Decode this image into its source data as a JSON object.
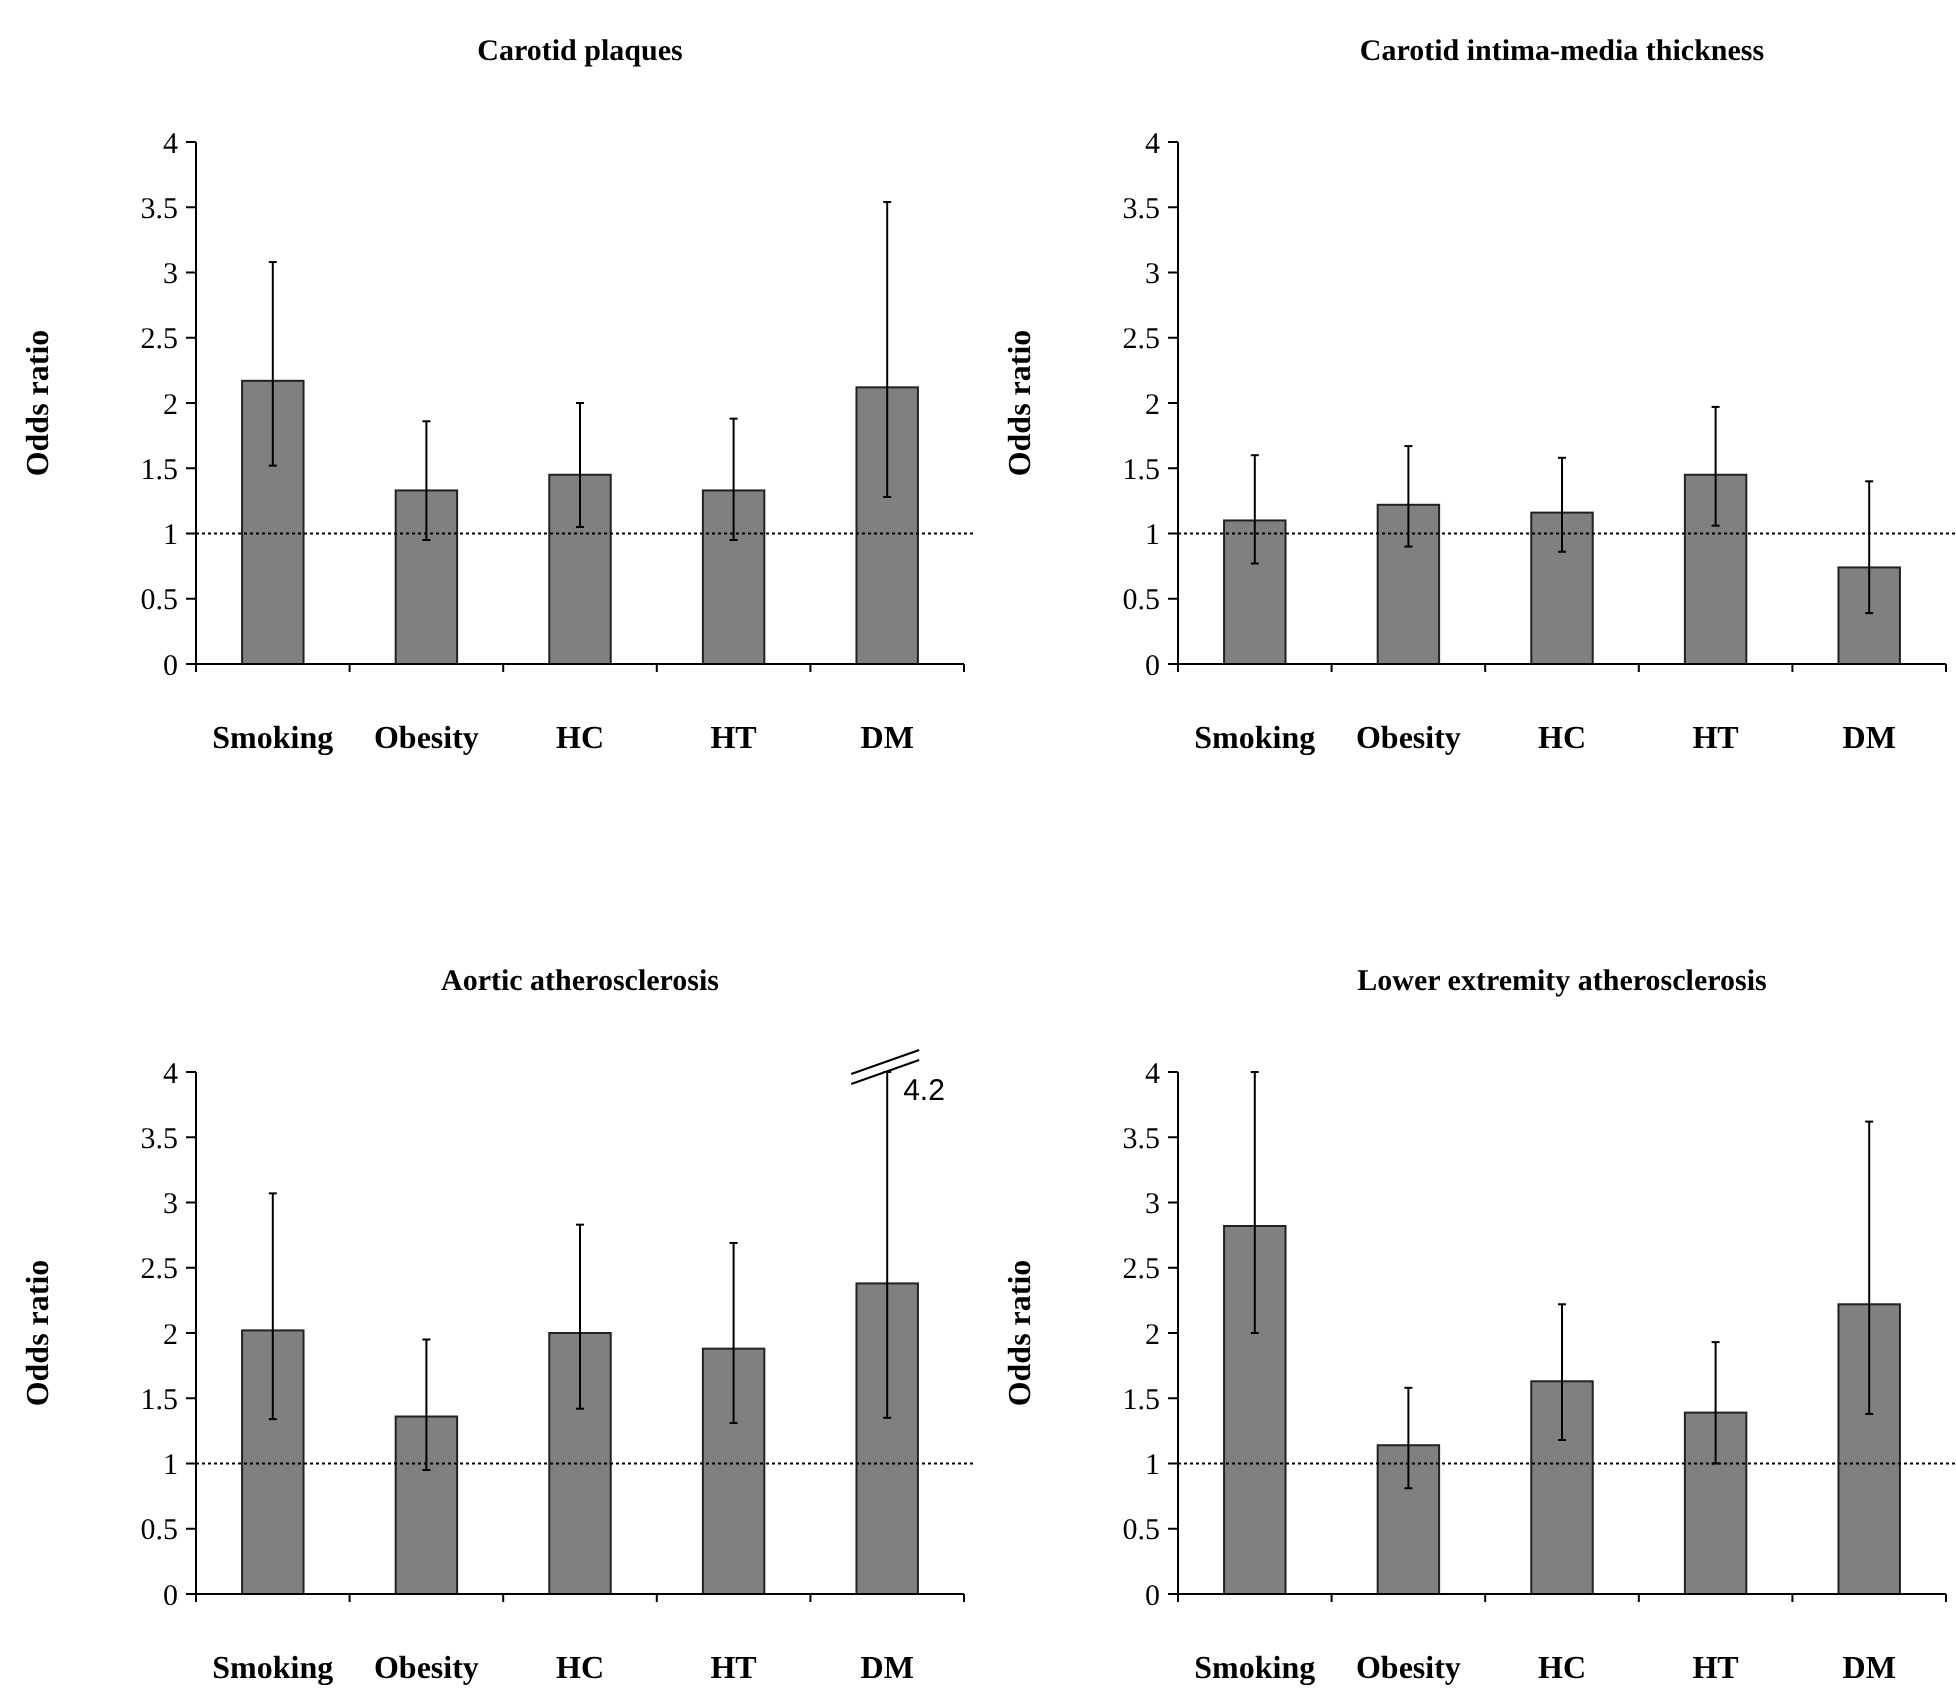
{
  "chart_data": [
    {
      "type": "bar",
      "title": "Carotid plaques",
      "ylabel": "Odds ratio",
      "categories": [
        "Smoking",
        "Obesity",
        "HC",
        "HT",
        "DM"
      ],
      "values": [
        2.17,
        1.33,
        1.45,
        1.33,
        2.12
      ],
      "errors": [
        [
          1.52,
          3.08
        ],
        [
          0.95,
          1.86
        ],
        [
          1.05,
          2.0
        ],
        [
          0.95,
          1.88
        ],
        [
          1.28,
          3.54
        ]
      ],
      "color": "#808080",
      "ylim": [
        0,
        4
      ],
      "yticks": [
        0,
        0.5,
        1,
        1.5,
        2,
        2.5,
        3,
        3.5,
        4
      ],
      "grid": false,
      "ref_lines": [
        {
          "axis": "y",
          "value": 1,
          "line_style": "dotted",
          "color": "#000000"
        }
      ]
    },
    {
      "type": "bar",
      "title": "Carotid intima-media thickness",
      "ylabel": "Odds ratio",
      "categories": [
        "Smoking",
        "Obesity",
        "HC",
        "HT",
        "DM"
      ],
      "values": [
        1.1,
        1.22,
        1.16,
        1.45,
        0.74
      ],
      "errors": [
        [
          0.77,
          1.6
        ],
        [
          0.9,
          1.67
        ],
        [
          0.86,
          1.58
        ],
        [
          1.06,
          1.97
        ],
        [
          0.39,
          1.4
        ]
      ],
      "color": "#808080",
      "ylim": [
        0,
        4
      ],
      "yticks": [
        0,
        0.5,
        1,
        1.5,
        2,
        2.5,
        3,
        3.5,
        4
      ],
      "grid": false,
      "ref_lines": [
        {
          "axis": "y",
          "value": 1,
          "line_style": "dotted",
          "color": "#000000"
        }
      ]
    },
    {
      "type": "bar",
      "title": "Aortic atherosclerosis",
      "ylabel": "Odds ratio",
      "categories": [
        "Smoking",
        "Obesity",
        "HC",
        "HT",
        "DM"
      ],
      "values": [
        2.02,
        1.36,
        2.0,
        1.88,
        2.38
      ],
      "errors": [
        [
          1.34,
          3.07
        ],
        [
          0.95,
          1.95
        ],
        [
          1.42,
          2.83
        ],
        [
          1.31,
          2.69
        ],
        [
          1.35,
          4
        ]
      ],
      "color": "#808080",
      "ylim": [
        0,
        4
      ],
      "yticks": [
        0,
        0.5,
        1,
        1.5,
        2,
        2.5,
        3,
        3.5,
        4
      ],
      "grid": false,
      "ref_lines": [
        {
          "axis": "y",
          "value": 1,
          "line_style": "dotted",
          "color": "#000000"
        }
      ],
      "annotations": [
        {
          "text": "4.2",
          "x": "DM",
          "y": 4
        }
      ]
    },
    {
      "type": "bar",
      "title": "Lower extremity atherosclerosis",
      "ylabel": "Odds ratio",
      "categories": [
        "Smoking",
        "Obesity",
        "HC",
        "HT",
        "DM"
      ],
      "values": [
        2.82,
        1.14,
        1.63,
        1.39,
        2.22
      ],
      "errors": [
        [
          2.0,
          4.0
        ],
        [
          0.81,
          1.58
        ],
        [
          1.18,
          2.22
        ],
        [
          1.0,
          1.93
        ],
        [
          1.38,
          3.62
        ]
      ],
      "color": "#808080",
      "ylim": [
        0,
        4
      ],
      "yticks": [
        0,
        0.5,
        1,
        1.5,
        2,
        2.5,
        3,
        3.5,
        4
      ],
      "grid": false,
      "ref_lines": [
        {
          "axis": "y",
          "value": 1,
          "line_style": "dotted",
          "color": "#000000"
        }
      ]
    }
  ]
}
